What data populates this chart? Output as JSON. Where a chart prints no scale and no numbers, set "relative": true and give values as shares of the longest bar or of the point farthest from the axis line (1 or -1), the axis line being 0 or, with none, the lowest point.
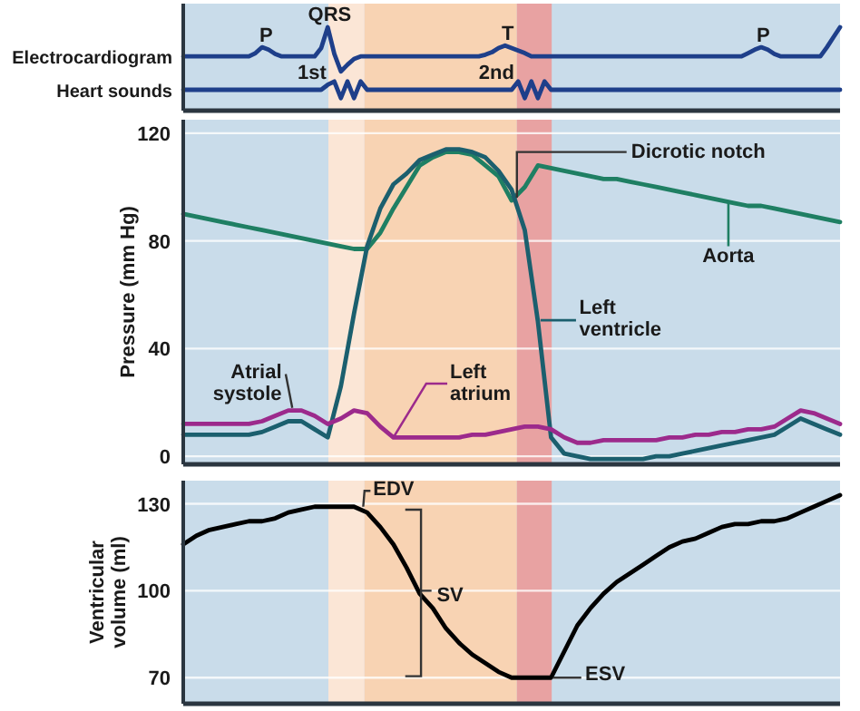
{
  "chart_data": [
    {
      "type": "line",
      "relative": true,
      "tick_labels": false,
      "line_style": "solid",
      "categories": [
        null,
        null,
        null,
        null,
        null,
        null,
        null,
        null,
        null,
        null,
        null,
        null,
        null,
        null,
        null,
        null,
        null,
        null,
        null,
        null,
        null,
        null,
        null,
        null,
        null,
        null,
        null,
        null,
        null,
        null,
        null,
        null,
        null,
        null,
        null,
        null,
        null,
        null,
        null,
        null,
        null,
        null,
        null,
        null,
        null,
        null,
        null,
        null,
        null,
        null,
        null,
        null,
        null,
        null,
        null,
        null,
        null,
        null,
        null,
        null,
        null,
        null,
        null,
        null,
        null,
        null,
        null,
        null,
        null,
        null,
        null,
        null,
        null,
        null,
        null,
        null,
        null,
        null,
        null,
        null,
        null,
        null,
        null,
        null,
        null,
        null,
        null,
        null,
        null,
        null,
        null,
        null,
        null,
        null,
        null,
        null,
        null,
        null,
        null,
        null,
        null
      ],
      "series": [
        {
          "name": "Electrocardiogram",
          "color": "#1e3f8a",
          "values": [
            0.65,
            0.65,
            0.65,
            0.65,
            0.65,
            0.65,
            0.65,
            0.65,
            0.65,
            0.65,
            0.65,
            0.69,
            0.76,
            0.73,
            0.68,
            0.65,
            0.65,
            0.65,
            0.65,
            0.65,
            0.65,
            0.75,
            1,
            0.68,
            0.47,
            0.55,
            0.62,
            0.65,
            0.65,
            0.65,
            0.65,
            0.65,
            0.65,
            0.65,
            0.65,
            0.65,
            0.65,
            0.65,
            0.65,
            0.65,
            0.65,
            0.65,
            0.65,
            0.65,
            0.65,
            0.65,
            0.67,
            0.7,
            0.75,
            0.78,
            0.75,
            0.72,
            0.69,
            0.65,
            0.65,
            0.65,
            0.65,
            0.65,
            0.65,
            0.65,
            0.65,
            0.65,
            0.65,
            0.65,
            0.65,
            0.65,
            0.65,
            0.65,
            0.65,
            0.65,
            0.65,
            0.65,
            0.65,
            0.65,
            0.65,
            0.65,
            0.65,
            0.65,
            0.65,
            0.65,
            0.65,
            0.65,
            0.65,
            0.65,
            0.65,
            0.65,
            0.69,
            0.73,
            0.76,
            0.73,
            0.68,
            0.65,
            0.65,
            0.65,
            0.65,
            0.65,
            0.65,
            0.65,
            0.76,
            0.88,
            1
          ]
        },
        {
          "name": "Heart sounds",
          "color": "#1e3f8a",
          "values": [
            0.25,
            0.25,
            0.25,
            0.25,
            0.25,
            0.25,
            0.25,
            0.25,
            0.25,
            0.25,
            0.25,
            0.25,
            0.25,
            0.25,
            0.25,
            0.25,
            0.25,
            0.25,
            0.25,
            0.25,
            0.25,
            0.25,
            0.31,
            0.35,
            0.15,
            0.35,
            0.15,
            0.35,
            0.25,
            0.25,
            0.25,
            0.25,
            0.25,
            0.25,
            0.25,
            0.25,
            0.25,
            0.25,
            0.25,
            0.25,
            0.25,
            0.25,
            0.25,
            0.25,
            0.25,
            0.25,
            0.25,
            0.25,
            0.25,
            0.25,
            0.25,
            0.35,
            0.15,
            0.35,
            0.15,
            0.35,
            0.25,
            0.25,
            0.25,
            0.25,
            0.25,
            0.25,
            0.25,
            0.25,
            0.25,
            0.25,
            0.25,
            0.25,
            0.25,
            0.25,
            0.25,
            0.25,
            0.25,
            0.25,
            0.25,
            0.25,
            0.25,
            0.25,
            0.25,
            0.25,
            0.25,
            0.25,
            0.25,
            0.25,
            0.25,
            0.25,
            0.25,
            0.25,
            0.25,
            0.25,
            0.25,
            0.25,
            0.25,
            0.25,
            0.25,
            0.25,
            0.25,
            0.25,
            0.25,
            0.25,
            0.25
          ]
        }
      ],
      "annotations": [
        "P",
        "QRS",
        "T",
        "P",
        "1st",
        "2nd"
      ]
    },
    {
      "type": "line",
      "ylabel": "Pressure (mm Hg)",
      "ylim": [
        -3,
        125
      ],
      "yticks": [
        0,
        40,
        80,
        120
      ],
      "grid": "y",
      "tick_labels": "y",
      "line_style": "solid",
      "categories": [
        null,
        null,
        null,
        null,
        null,
        null,
        null,
        null,
        null,
        null,
        null,
        null,
        null,
        null,
        null,
        null,
        null,
        null,
        null,
        null,
        null,
        null,
        null,
        null,
        null,
        null,
        null,
        null,
        null,
        null,
        null,
        null,
        null,
        null,
        null,
        null,
        null,
        null,
        null,
        null,
        null,
        null,
        null,
        null,
        null,
        null,
        null,
        null,
        null,
        null,
        null
      ],
      "series": [
        {
          "name": "Aorta",
          "color": "#1f7f63",
          "values": [
            90,
            89,
            88,
            87,
            86,
            85,
            84,
            83,
            82,
            81,
            80,
            79,
            78,
            77,
            77,
            83,
            92,
            100,
            108,
            111,
            113,
            113,
            112,
            108,
            104,
            95,
            100,
            108,
            107,
            106,
            105,
            104,
            103,
            103,
            102,
            101,
            100,
            99,
            98,
            97,
            96,
            95,
            94,
            93,
            93,
            92,
            91,
            90,
            89,
            88,
            87
          ]
        },
        {
          "name": "Left ventricle",
          "color": "#1b5f6e",
          "values": [
            8,
            8,
            8,
            8,
            8,
            8,
            9,
            11,
            13,
            13,
            10,
            7,
            26,
            53,
            78,
            92,
            101,
            105,
            110,
            112,
            114,
            114,
            113,
            111,
            106,
            99,
            84,
            50,
            7,
            1,
            0,
            -1,
            -1,
            -1,
            -1,
            -1,
            0,
            0,
            1,
            2,
            3,
            4,
            5,
            6,
            7,
            8,
            11,
            14,
            12,
            10,
            8
          ]
        },
        {
          "name": "Left atrium",
          "color": "#9c2a8c",
          "values": [
            12,
            12,
            12,
            12,
            12,
            12,
            13,
            15,
            17,
            17,
            15,
            12,
            14,
            17,
            16,
            11,
            7,
            7,
            7,
            7,
            7,
            7,
            8,
            8,
            9,
            10,
            11,
            11,
            10,
            7,
            5,
            5,
            6,
            6,
            6,
            6,
            6,
            7,
            7,
            8,
            8,
            9,
            9,
            10,
            10,
            11,
            14,
            17,
            16,
            14,
            12
          ]
        }
      ],
      "annotations": [
        "Dicrotic notch",
        "Atrial systole"
      ]
    },
    {
      "type": "line",
      "ylabel": "Ventricular volume (ml)",
      "ylim": [
        61,
        138
      ],
      "yticks": [
        70,
        100,
        130
      ],
      "grid": "y",
      "tick_labels": "y",
      "line_style": "solid",
      "categories": [
        null,
        null,
        null,
        null,
        null,
        null,
        null,
        null,
        null,
        null,
        null,
        null,
        null,
        null,
        null,
        null,
        null,
        null,
        null,
        null,
        null,
        null,
        null,
        null,
        null,
        null,
        null,
        null,
        null,
        null,
        null,
        null,
        null,
        null,
        null,
        null,
        null,
        null,
        null,
        null,
        null,
        null,
        null,
        null,
        null,
        null,
        null,
        null,
        null,
        null,
        null
      ],
      "series": [
        {
          "color": "#000000",
          "values": [
            116,
            119,
            121,
            122,
            123,
            124,
            124,
            125,
            127,
            128,
            129,
            129,
            129,
            129,
            127,
            122,
            116,
            108,
            99,
            94,
            87,
            82,
            78,
            75,
            72,
            70,
            70,
            70,
            70,
            79,
            88,
            94,
            99,
            103,
            106,
            109,
            112,
            115,
            117,
            118,
            120,
            122,
            123,
            123,
            124,
            124,
            125,
            127,
            129,
            131,
            133
          ]
        }
      ],
      "annotations": [
        "EDV",
        "SV",
        "ESV"
      ]
    }
  ]
}
